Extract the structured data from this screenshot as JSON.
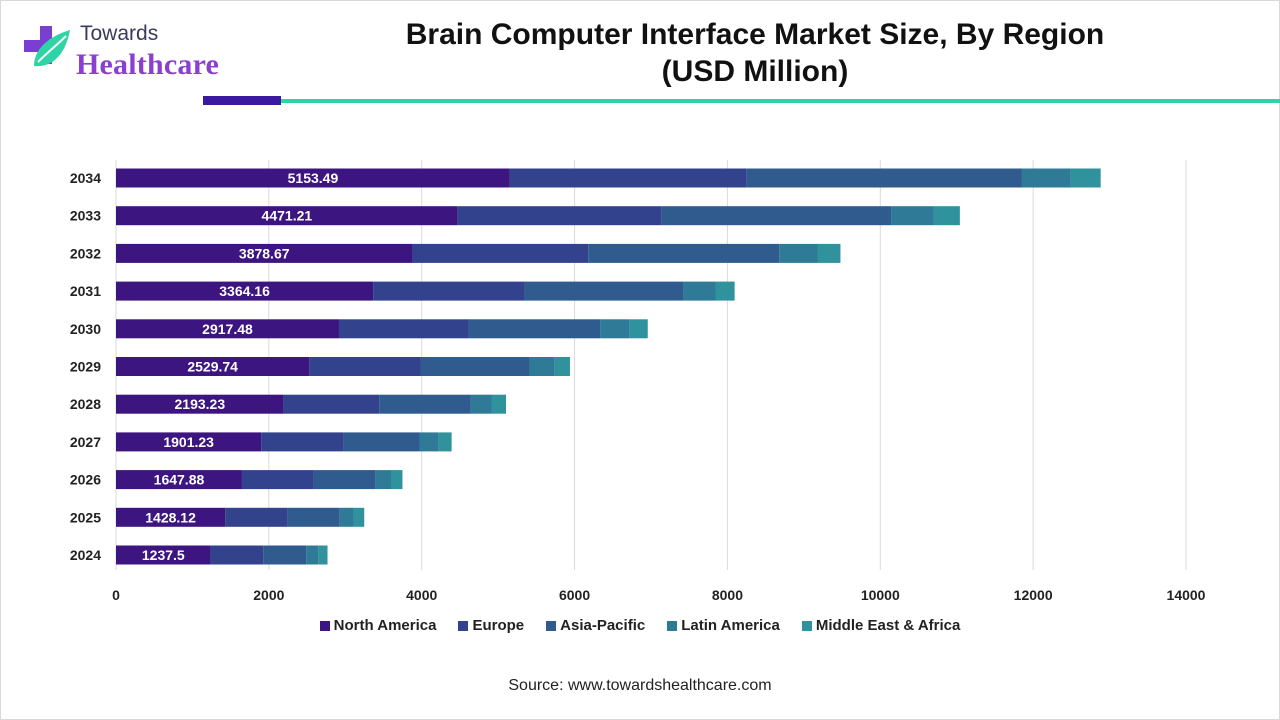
{
  "logo": {
    "line1": "Towards",
    "line2": "Healthcare"
  },
  "header": {
    "title_line1": "Brain Computer Interface Market Size, By Region",
    "title_line2": "(USD Million)"
  },
  "source": "Source: www.towardshealthcare.com",
  "colors": {
    "north_america": "#3d1580",
    "europe": "#33428c",
    "asia_pacific": "#2f5b8e",
    "latin_america": "#2f7a96",
    "middle_east_africa": "#2f929c",
    "grid": "#d9d9d9",
    "label": "#ffffff"
  },
  "chart_data": {
    "type": "bar",
    "orientation": "horizontal",
    "stacked": true,
    "title": "Brain Computer Interface Market Size, By Region (USD Million)",
    "xlabel": "",
    "ylabel": "",
    "xlim": [
      0,
      14000
    ],
    "xticks": [
      0,
      2000,
      4000,
      6000,
      8000,
      10000,
      12000,
      14000
    ],
    "grid": true,
    "legend_position": "bottom",
    "categories": [
      "2034",
      "2033",
      "2032",
      "2031",
      "2030",
      "2029",
      "2028",
      "2027",
      "2026",
      "2025",
      "2024"
    ],
    "series": [
      {
        "name": "North America",
        "color_key": "north_america",
        "values": [
          5153.49,
          4471.21,
          3878.67,
          3364.16,
          2917.48,
          2529.74,
          2193.23,
          1901.23,
          1647.88,
          1428.12,
          1237.5
        ],
        "labels": [
          "5153.49",
          "4471.21",
          "3878.67",
          "3364.16",
          "2917.48",
          "2529.74",
          "2193.23",
          "1901.23",
          "1647.88",
          "1428.12",
          "1237.5"
        ]
      },
      {
        "name": "Europe",
        "color_key": "europe",
        "values": [
          3100,
          2670,
          2300,
          1980,
          1700,
          1460,
          1250,
          1080,
          930,
          820,
          690
        ]
      },
      {
        "name": "Asia-Pacific",
        "color_key": "asia_pacific",
        "values": [
          3600,
          3000,
          2500,
          2080,
          1720,
          1420,
          1200,
          990,
          820,
          680,
          560
        ]
      },
      {
        "name": "Latin America",
        "color_key": "latin_america",
        "values": [
          640,
          560,
          500,
          420,
          380,
          330,
          270,
          250,
          200,
          180,
          160
        ]
      },
      {
        "name": "Middle East & Africa",
        "color_key": "middle_east_africa",
        "values": [
          390,
          340,
          300,
          250,
          240,
          200,
          190,
          170,
          150,
          140,
          120
        ]
      }
    ]
  }
}
